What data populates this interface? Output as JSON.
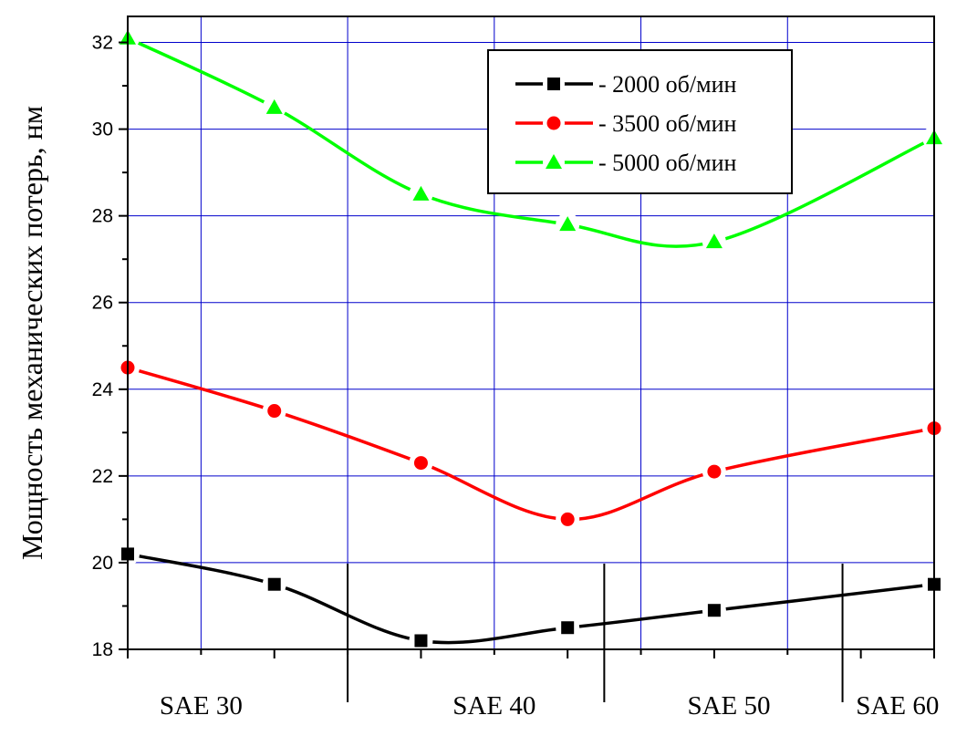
{
  "chart_data": {
    "type": "line",
    "title": "",
    "xlabel": "",
    "ylabel": "Мощность механических потерь, нм",
    "ylim": [
      18,
      32.6
    ],
    "yticks": [
      18,
      20,
      22,
      24,
      26,
      28,
      30,
      32
    ],
    "xlim": [
      0,
      11
    ],
    "x": [
      0,
      2,
      4,
      6,
      8,
      11
    ],
    "grid": true,
    "legend_position": "top-right",
    "category_labels": [
      {
        "text": "SAE 30",
        "x": 1
      },
      {
        "text": "SAE 40",
        "x": 5
      },
      {
        "text": "SAE 50",
        "x": 8.2
      },
      {
        "text": "SAE 60",
        "x": 10.5
      }
    ],
    "category_dividers": [
      3,
      6.5,
      9.75
    ],
    "series": [
      {
        "name": "- 2000 об/мин",
        "color": "#000000",
        "marker": "square",
        "values": [
          20.2,
          19.5,
          18.2,
          18.5,
          18.9,
          19.5
        ]
      },
      {
        "name": "- 3500 об/мин",
        "color": "#ff0000",
        "marker": "circle",
        "values": [
          24.5,
          23.5,
          22.3,
          21.0,
          22.1,
          23.1
        ]
      },
      {
        "name": "- 5000 об/мин",
        "color": "#00ff00",
        "marker": "triangle",
        "values": [
          32.1,
          30.5,
          28.5,
          27.8,
          27.4,
          29.8
        ]
      }
    ],
    "colors": {
      "grid": "#0000cc",
      "axis": "#000000"
    }
  }
}
